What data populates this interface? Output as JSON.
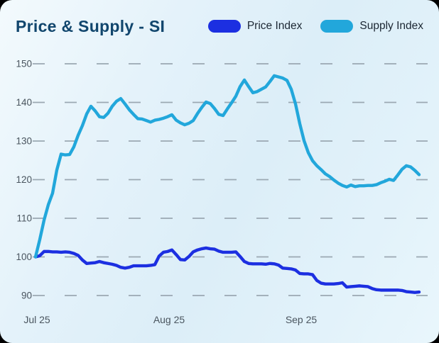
{
  "header": {
    "title": "Price & Supply - SI"
  },
  "chart_data": {
    "type": "line",
    "title": "Price & Supply - SI",
    "xlabel": "",
    "ylabel": "",
    "grid": "dashed horizontal gridlines",
    "legend_position": "top-right",
    "ylim": [
      87,
      153
    ],
    "y_ticks": [
      90,
      100,
      110,
      120,
      130,
      140,
      150
    ],
    "x_tick_labels": [
      "Jul 25",
      "Aug 25",
      "Sep 25"
    ],
    "x_tick_days": [
      0,
      31,
      62
    ],
    "axis_label_color": "#4a555f",
    "gridline_color": "#9ba8b2",
    "series": [
      {
        "name": "Price Index",
        "color": "#1c2fe1",
        "values": [
          100,
          100.3,
          101.4,
          101.4,
          101.3,
          101.3,
          101.2,
          101.3,
          101.2,
          100.9,
          100.4,
          99.2,
          98.3,
          98.4,
          98.5,
          98.8,
          98.5,
          98.3,
          98.1,
          97.8,
          97.3,
          97.1,
          97.3,
          97.7,
          97.7,
          97.7,
          97.7,
          97.8,
          98,
          100.2,
          101.2,
          101.4,
          101.8,
          100.6,
          99.3,
          99.2,
          100.1,
          101.3,
          101.8,
          102.1,
          102.3,
          102.1,
          102,
          101.5,
          101.2,
          101.2,
          101.2,
          101.3,
          100.1,
          98.8,
          98.3,
          98.2,
          98.2,
          98.2,
          98.1,
          98.3,
          98.2,
          97.9,
          97.1,
          97,
          96.9,
          96.6,
          95.7,
          95.6,
          95.6,
          95.4,
          93.9,
          93.2,
          93,
          93,
          93,
          93.1,
          93.3,
          92.2,
          92.3,
          92.4,
          92.5,
          92.4,
          92.3,
          91.8,
          91.5,
          91.4,
          91.4,
          91.4,
          91.4,
          91.4,
          91.3,
          91,
          90.9,
          90.8,
          90.9
        ]
      },
      {
        "name": "Supply Index",
        "color": "#22a7db",
        "values": [
          100,
          104.5,
          109.5,
          113.5,
          116.5,
          122.5,
          126.6,
          126.4,
          126.5,
          128.5,
          131.5,
          134,
          137,
          139,
          137.8,
          136.3,
          136.1,
          137.2,
          139,
          140.3,
          141,
          139.6,
          138.1,
          136.9,
          135.8,
          135.7,
          135.3,
          134.9,
          135.4,
          135.6,
          135.9,
          136.3,
          136.8,
          135.4,
          134.7,
          134.2,
          134.6,
          135.3,
          137.1,
          138.7,
          140.1,
          139.7,
          138.4,
          136.9,
          136.6,
          138.3,
          139.9,
          141.6,
          144.1,
          145.8,
          144.1,
          142.5,
          142.8,
          143.4,
          144,
          145.4,
          146.9,
          146.6,
          146.3,
          145.7,
          143.4,
          139.6,
          134.5,
          130.1,
          127,
          124.9,
          123.6,
          122.6,
          121.5,
          120.8,
          119.9,
          119.1,
          118.5,
          118.1,
          118.6,
          118.2,
          118.4,
          118.4,
          118.5,
          118.5,
          118.7,
          119.2,
          119.6,
          120.1,
          119.8,
          121.2,
          122.7,
          123.6,
          123.3,
          122.4,
          121.3
        ]
      }
    ]
  }
}
